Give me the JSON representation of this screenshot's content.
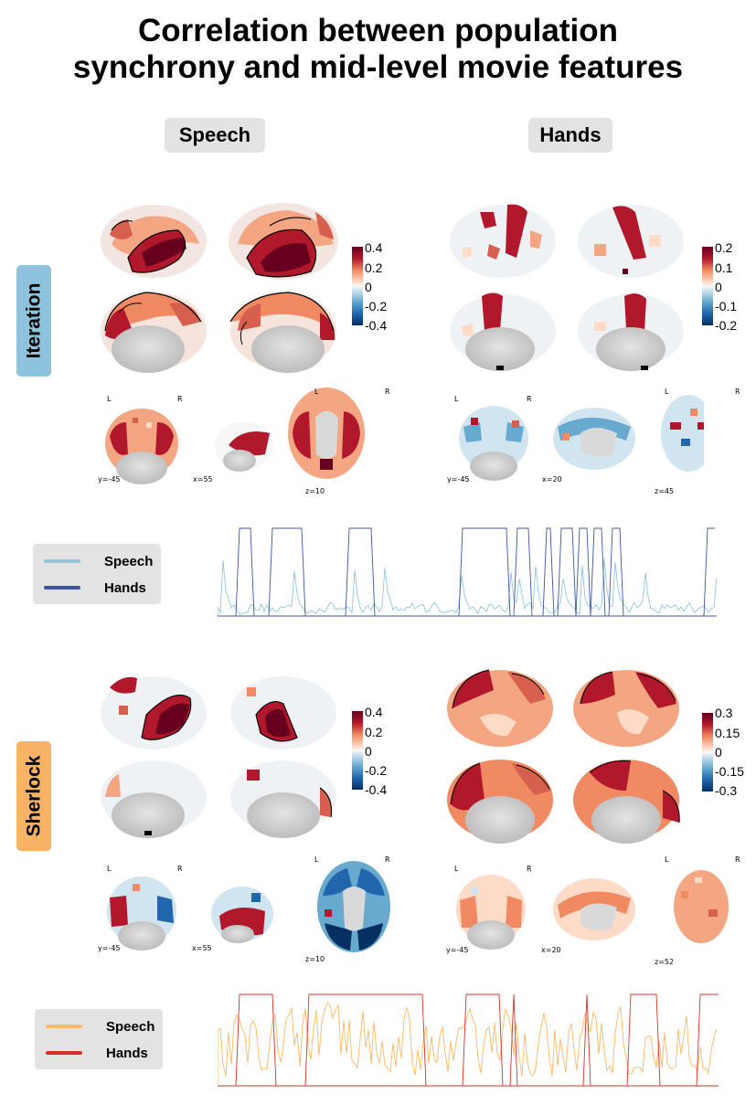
{
  "title_line1": "Correlation between population",
  "title_line2": "synchrony and mid-level movie features",
  "columns": [
    "Speech",
    "Hands"
  ],
  "rows": [
    {
      "label": "Iteration",
      "color": "#8ec3de"
    },
    {
      "label": "Sherlock",
      "color": "#f7b266"
    }
  ],
  "colorbars": [
    {
      "ticks": [
        "0.4",
        "0.2",
        "0",
        "-0.2",
        "-0.4"
      ]
    },
    {
      "ticks": [
        "0.2",
        "0.1",
        "0",
        "-0.1",
        "-0.2"
      ]
    },
    {
      "ticks": [
        "0.4",
        "0.2",
        "0",
        "-0.2",
        "-0.4"
      ]
    },
    {
      "ticks": [
        "0.3",
        "0.15",
        "0",
        "-0.15",
        "-0.3"
      ]
    }
  ],
  "slice_labels": {
    "lr": [
      "L",
      "R"
    ],
    "iter_speech": [
      "y=-45",
      "x=55",
      "z=10"
    ],
    "iter_hands": [
      "y=-45",
      "x=20",
      "z=45"
    ],
    "sher_speech": [
      "y=-45",
      "x=55",
      "z=10"
    ],
    "sher_hands": [
      "y=-45",
      "x=20",
      "z=52"
    ]
  },
  "legends": [
    {
      "items": [
        {
          "label": "Speech",
          "color": "#92c5de"
        },
        {
          "label": "Hands",
          "color": "#3d55a5"
        }
      ]
    },
    {
      "items": [
        {
          "label": "Speech",
          "color": "#fdb863"
        },
        {
          "label": "Hands",
          "color": "#d7302b"
        }
      ]
    }
  ]
}
